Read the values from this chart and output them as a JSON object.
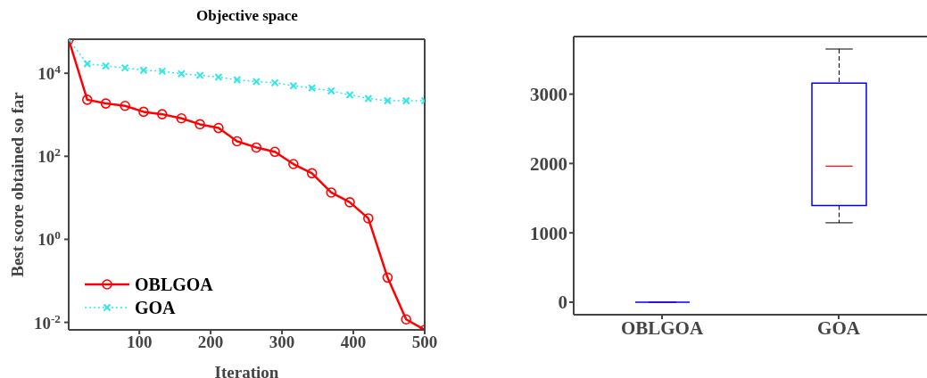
{
  "chart_data": [
    {
      "type": "line",
      "title": "Objective space",
      "xlabel": "Iteration",
      "ylabel": "Best score obtained so far",
      "log": "y",
      "x": [
        1,
        27,
        53,
        80,
        106,
        132,
        159,
        185,
        211,
        237,
        264,
        290,
        316,
        342,
        369,
        395,
        421,
        448,
        474,
        500
      ],
      "series": [
        {
          "name": "OBLGOA",
          "color": "#ff0000",
          "marker": "circle",
          "line_style": "solid",
          "values": [
            65000,
            2300,
            1870,
            1640,
            1180,
            1030,
            820,
            590,
            480,
            230,
            163,
            128,
            65,
            39,
            13.4,
            7.8,
            3.2,
            0.12,
            0.0118,
            0.0066
          ]
        },
        {
          "name": "GOA",
          "color": "#33e6e6",
          "marker": "cross",
          "line_style": "dotted",
          "values": [
            65000,
            17000,
            15000,
            13500,
            11800,
            11200,
            9700,
            8900,
            8100,
            6950,
            6300,
            5900,
            5000,
            4400,
            3740,
            3000,
            2470,
            2170,
            2170,
            2170
          ]
        }
      ],
      "xlim": [
        1,
        500
      ],
      "xticks": [
        100,
        200,
        300,
        400,
        500
      ],
      "ylim": [
        0.0066,
        66000
      ],
      "yticks": [
        {
          "value": 0.01,
          "label": "10$^{-2}$"
        },
        {
          "value": 1,
          "label": "10$^{0}$"
        },
        {
          "value": 100,
          "label": "10$^{2}$"
        },
        {
          "value": 10000,
          "label": "10$^{4}$"
        }
      ],
      "grid": false,
      "legend": "bottom left"
    },
    {
      "type": "box",
      "categories": [
        "OBLGOA",
        "GOA"
      ],
      "color": "#0000ff",
      "boxes": [
        {
          "low": 0,
          "q1": 0,
          "median": 0,
          "q3": 0,
          "high": 0
        },
        {
          "low": 1145,
          "q1": 1395,
          "median": 1962,
          "q3": 3157,
          "high": 3650
        }
      ],
      "ylim": [
        -180,
        3830
      ],
      "yticks": [
        0,
        1000,
        2000,
        3000
      ],
      "grid": false
    }
  ]
}
